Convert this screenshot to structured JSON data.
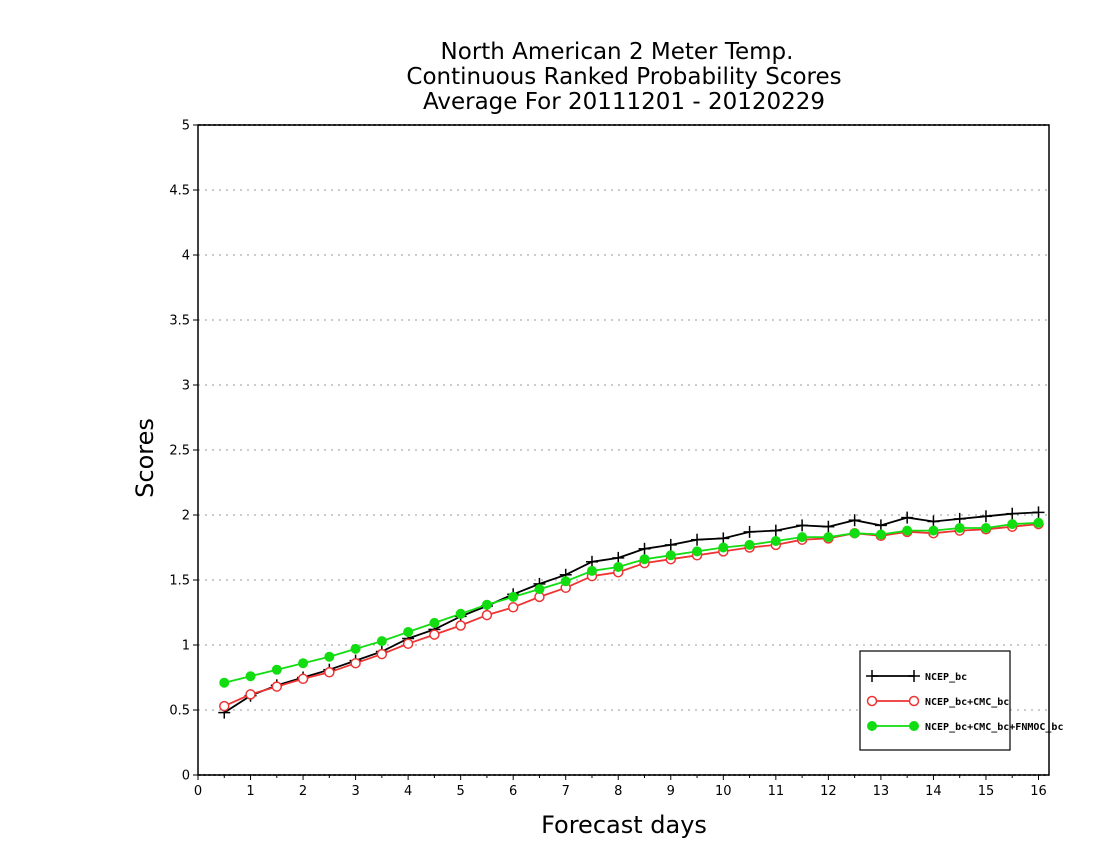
{
  "chart_data": {
    "type": "line",
    "title_lines": [
      "North American 2 Meter Temp.",
      "Continuous Ranked Probability Scores",
      "Average For 20111201 - 20120229"
    ],
    "xlabel": "Forecast days",
    "ylabel": "Scores",
    "xlim": [
      0,
      16.2
    ],
    "ylim": [
      0,
      5
    ],
    "x_ticks": [
      0,
      1,
      2,
      3,
      4,
      5,
      6,
      7,
      8,
      9,
      10,
      11,
      12,
      13,
      14,
      15,
      16
    ],
    "y_ticks": [
      0,
      0.5,
      1,
      1.5,
      2,
      2.5,
      3,
      3.5,
      4,
      4.5,
      5
    ],
    "y_tick_labels": [
      "0",
      "0.5",
      "1",
      "1.5",
      "2",
      "2.5",
      "3",
      "3.5",
      "4",
      "4.5",
      "5"
    ],
    "grid": "horizontal dotted",
    "legend_position": "bottom-right",
    "x": [
      0.5,
      1,
      1.5,
      2,
      2.5,
      3,
      3.5,
      4,
      4.5,
      5,
      5.5,
      6,
      6.5,
      7,
      7.5,
      8,
      8.5,
      9,
      9.5,
      10,
      10.5,
      11,
      11.5,
      12,
      12.5,
      13,
      13.5,
      14,
      14.5,
      15,
      15.5,
      16
    ],
    "series": [
      {
        "name": "NCEP_bc",
        "color": "#000000",
        "marker": "plus",
        "values": [
          0.48,
          0.61,
          0.69,
          0.75,
          0.81,
          0.88,
          0.95,
          1.05,
          1.12,
          1.22,
          1.3,
          1.39,
          1.47,
          1.54,
          1.64,
          1.67,
          1.74,
          1.77,
          1.81,
          1.82,
          1.87,
          1.88,
          1.92,
          1.91,
          1.96,
          1.92,
          1.98,
          1.95,
          1.97,
          1.99,
          2.01,
          2.02
        ]
      },
      {
        "name": "NCEP_bc+CMC_bc",
        "color": "#ee3333",
        "marker": "open-circle",
        "values": [
          0.53,
          0.62,
          0.68,
          0.74,
          0.79,
          0.86,
          0.93,
          1.01,
          1.08,
          1.15,
          1.23,
          1.29,
          1.37,
          1.44,
          1.53,
          1.56,
          1.63,
          1.66,
          1.69,
          1.72,
          1.75,
          1.77,
          1.81,
          1.82,
          1.86,
          1.84,
          1.87,
          1.86,
          1.88,
          1.89,
          1.91,
          1.93
        ]
      },
      {
        "name": "NCEP_bc+CMC_bc+FNMOC_bc",
        "color": "#11dd11",
        "marker": "filled-circle",
        "values": [
          0.71,
          0.76,
          0.81,
          0.86,
          0.91,
          0.97,
          1.03,
          1.1,
          1.17,
          1.24,
          1.31,
          1.37,
          1.43,
          1.49,
          1.57,
          1.6,
          1.66,
          1.69,
          1.72,
          1.75,
          1.77,
          1.8,
          1.83,
          1.83,
          1.86,
          1.85,
          1.88,
          1.88,
          1.9,
          1.9,
          1.93,
          1.94
        ]
      }
    ]
  }
}
